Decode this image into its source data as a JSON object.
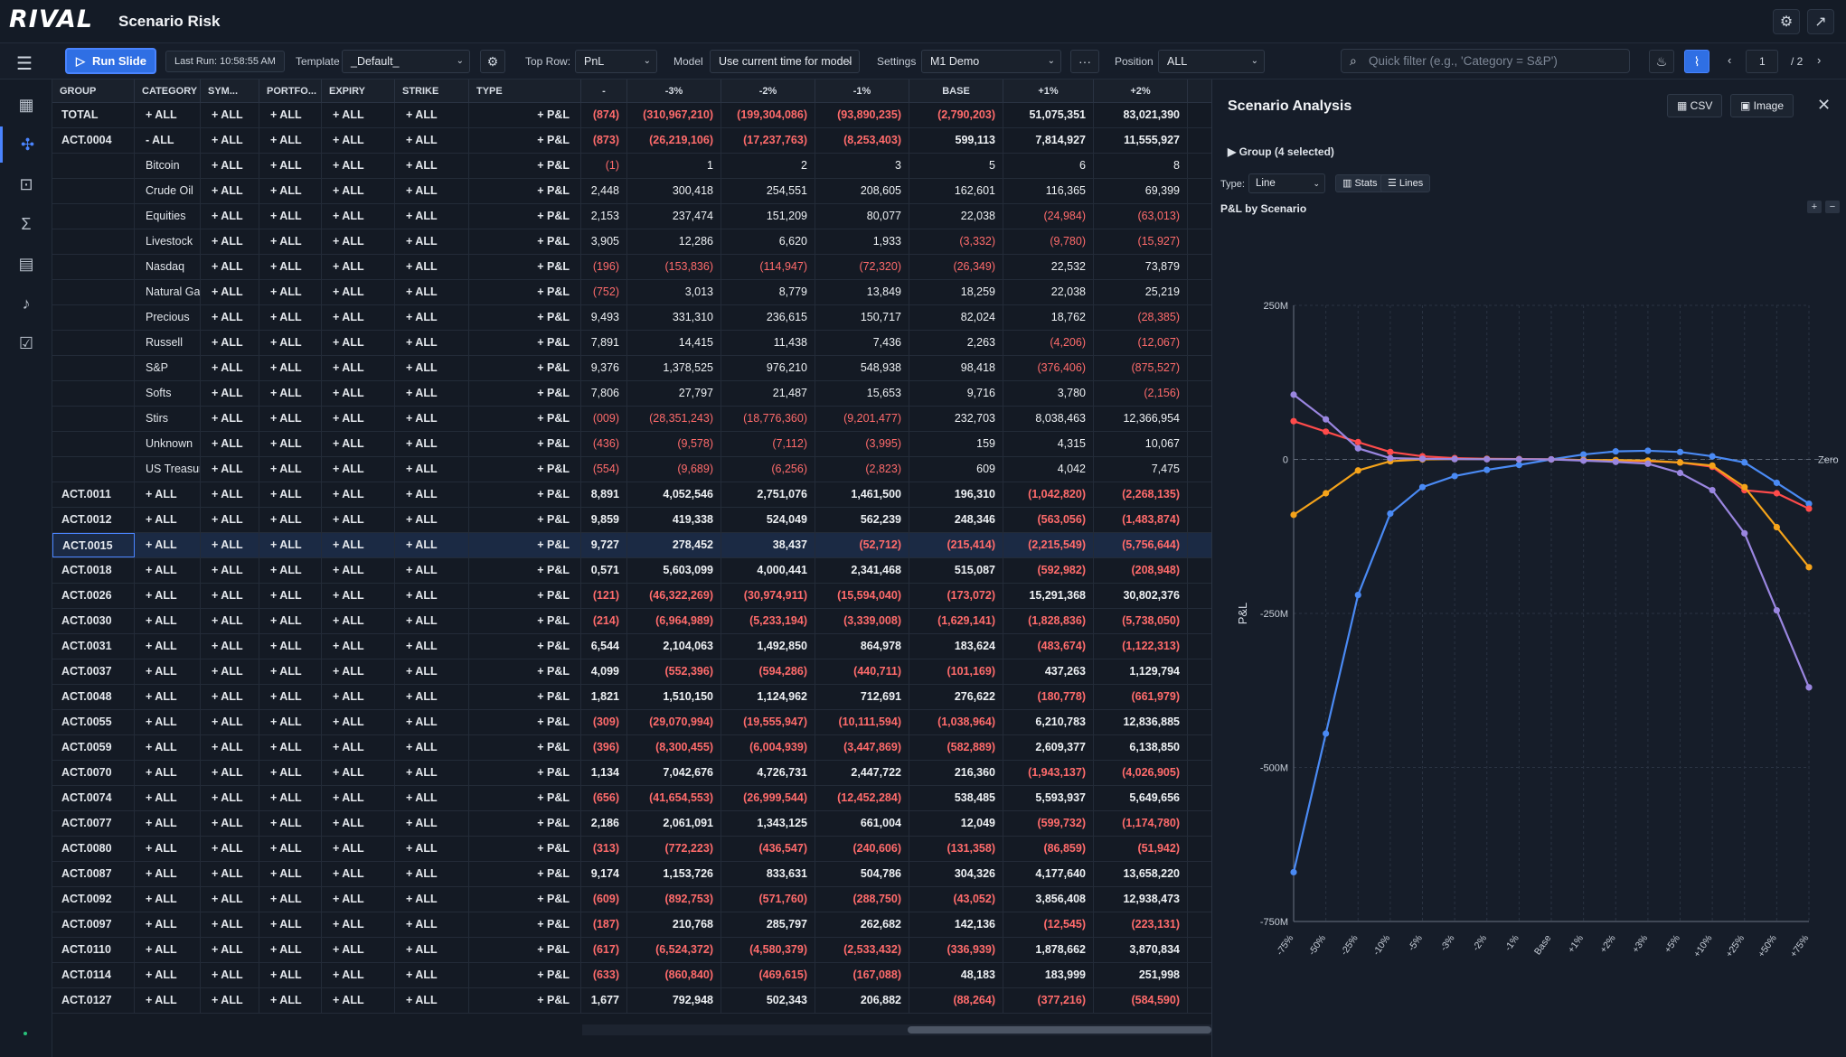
{
  "app": {
    "logo": "RIVAL",
    "title": "Scenario Risk"
  },
  "toolbar": {
    "run_label": "Run Slide",
    "last_run": "Last Run: 10:58:55 AM",
    "template_label": "Template",
    "template_value": "_Default_",
    "top_row_label": "Top Row:",
    "top_row_value": "PnL",
    "model_label": "Model",
    "model_value": "Use current time for model",
    "settings_label": "Settings",
    "settings_value": "M1 Demo",
    "more_label": "···",
    "position_label": "Position",
    "position_value": "ALL",
    "filter_placeholder": "Quick filter (e.g., 'Category = S&P')",
    "page_current": "1",
    "page_total": "/ 2"
  },
  "grid": {
    "headers": [
      "GROUP",
      "CATEGORY",
      "SYM...",
      "PORTFO...",
      "EXPIRY",
      "STRIKE",
      "TYPE",
      "-",
      "-3%",
      "-2%",
      "-1%",
      "BASE",
      "+1%",
      "+2%"
    ],
    "rows": [
      {
        "group": "TOTAL",
        "category": "+ ALL",
        "vals": [
          "(874)",
          "(310,967,210)",
          "(199,304,086)",
          "(93,890,235)",
          "(2,790,203)",
          "51,075,351",
          "83,021,390"
        ]
      },
      {
        "group": "ACT.0004",
        "category": "- ALL",
        "vals": [
          "(873)",
          "(26,219,106)",
          "(17,237,763)",
          "(8,253,403)",
          "599,113",
          "7,814,927",
          "11,555,927"
        ]
      },
      {
        "group": "",
        "category": "Bitcoin",
        "vals": [
          "(1)",
          "1",
          "2",
          "3",
          "5",
          "6",
          "8"
        ]
      },
      {
        "group": "",
        "category": "Crude Oil",
        "vals": [
          "2,448",
          "300,418",
          "254,551",
          "208,605",
          "162,601",
          "116,365",
          "69,399"
        ]
      },
      {
        "group": "",
        "category": "Equities",
        "vals": [
          "2,153",
          "237,474",
          "151,209",
          "80,077",
          "22,038",
          "(24,984)",
          "(63,013)"
        ]
      },
      {
        "group": "",
        "category": "Livestock",
        "vals": [
          "3,905",
          "12,286",
          "6,620",
          "1,933",
          "(3,332)",
          "(9,780)",
          "(15,927)"
        ]
      },
      {
        "group": "",
        "category": "Nasdaq",
        "vals": [
          "(196)",
          "(153,836)",
          "(114,947)",
          "(72,320)",
          "(26,349)",
          "22,532",
          "73,879"
        ]
      },
      {
        "group": "",
        "category": "Natural Gas",
        "vals": [
          "(752)",
          "3,013",
          "8,779",
          "13,849",
          "18,259",
          "22,038",
          "25,219"
        ]
      },
      {
        "group": "",
        "category": "Precious",
        "vals": [
          "9,493",
          "331,310",
          "236,615",
          "150,717",
          "82,024",
          "18,762",
          "(28,385)"
        ]
      },
      {
        "group": "",
        "category": "Russell",
        "vals": [
          "7,891",
          "14,415",
          "11,438",
          "7,436",
          "2,263",
          "(4,206)",
          "(12,067)"
        ]
      },
      {
        "group": "",
        "category": "S&P",
        "vals": [
          "9,376",
          "1,378,525",
          "976,210",
          "548,938",
          "98,418",
          "(376,406)",
          "(875,527)"
        ]
      },
      {
        "group": "",
        "category": "Softs",
        "vals": [
          "7,806",
          "27,797",
          "21,487",
          "15,653",
          "9,716",
          "3,780",
          "(2,156)"
        ]
      },
      {
        "group": "",
        "category": "Stirs",
        "vals": [
          "(009)",
          "(28,351,243)",
          "(18,776,360)",
          "(9,201,477)",
          "232,703",
          "8,038,463",
          "12,366,954"
        ]
      },
      {
        "group": "",
        "category": "Unknown",
        "vals": [
          "(436)",
          "(9,578)",
          "(7,112)",
          "(3,995)",
          "159",
          "4,315",
          "10,067"
        ]
      },
      {
        "group": "",
        "category": "US Treasury",
        "vals": [
          "(554)",
          "(9,689)",
          "(6,256)",
          "(2,823)",
          "609",
          "4,042",
          "7,475"
        ]
      },
      {
        "group": "ACT.0011",
        "category": "+ ALL",
        "vals": [
          "8,891",
          "4,052,546",
          "2,751,076",
          "1,461,500",
          "196,310",
          "(1,042,820)",
          "(2,268,135)"
        ]
      },
      {
        "group": "ACT.0012",
        "category": "+ ALL",
        "vals": [
          "9,859",
          "419,338",
          "524,049",
          "562,239",
          "248,346",
          "(563,056)",
          "(1,483,874)"
        ]
      },
      {
        "group": "ACT.0015",
        "category": "+ ALL",
        "vals": [
          "9,727",
          "278,452",
          "38,437",
          "(52,712)",
          "(215,414)",
          "(2,215,549)",
          "(5,756,644)"
        ]
      },
      {
        "group": "ACT.0018",
        "category": "+ ALL",
        "vals": [
          "0,571",
          "5,603,099",
          "4,000,441",
          "2,341,468",
          "515,087",
          "(592,982)",
          "(208,948)"
        ]
      },
      {
        "group": "ACT.0026",
        "category": "+ ALL",
        "vals": [
          "(121)",
          "(46,322,269)",
          "(30,974,911)",
          "(15,594,040)",
          "(173,072)",
          "15,291,368",
          "30,802,376"
        ]
      },
      {
        "group": "ACT.0030",
        "category": "+ ALL",
        "vals": [
          "(214)",
          "(6,964,989)",
          "(5,233,194)",
          "(3,339,008)",
          "(1,629,141)",
          "(1,828,836)",
          "(5,738,050)"
        ]
      },
      {
        "group": "ACT.0031",
        "category": "+ ALL",
        "vals": [
          "6,544",
          "2,104,063",
          "1,492,850",
          "864,978",
          "183,624",
          "(483,674)",
          "(1,122,313)"
        ]
      },
      {
        "group": "ACT.0037",
        "category": "+ ALL",
        "vals": [
          "4,099",
          "(552,396)",
          "(594,286)",
          "(440,711)",
          "(101,169)",
          "437,263",
          "1,129,794"
        ]
      },
      {
        "group": "ACT.0048",
        "category": "+ ALL",
        "vals": [
          "1,821",
          "1,510,150",
          "1,124,962",
          "712,691",
          "276,622",
          "(180,778)",
          "(661,979)"
        ]
      },
      {
        "group": "ACT.0055",
        "category": "+ ALL",
        "vals": [
          "(309)",
          "(29,070,994)",
          "(19,555,947)",
          "(10,111,594)",
          "(1,038,964)",
          "6,210,783",
          "12,836,885"
        ]
      },
      {
        "group": "ACT.0059",
        "category": "+ ALL",
        "vals": [
          "(396)",
          "(8,300,455)",
          "(6,004,939)",
          "(3,447,869)",
          "(582,889)",
          "2,609,377",
          "6,138,850"
        ]
      },
      {
        "group": "ACT.0070",
        "category": "+ ALL",
        "vals": [
          "1,134",
          "7,042,676",
          "4,726,731",
          "2,447,722",
          "216,360",
          "(1,943,137)",
          "(4,026,905)"
        ]
      },
      {
        "group": "ACT.0074",
        "category": "+ ALL",
        "vals": [
          "(656)",
          "(41,654,553)",
          "(26,999,544)",
          "(12,452,284)",
          "538,485",
          "5,593,937",
          "5,649,656"
        ]
      },
      {
        "group": "ACT.0077",
        "category": "+ ALL",
        "vals": [
          "2,186",
          "2,061,091",
          "1,343,125",
          "661,004",
          "12,049",
          "(599,732)",
          "(1,174,780)"
        ]
      },
      {
        "group": "ACT.0080",
        "category": "+ ALL",
        "vals": [
          "(313)",
          "(772,223)",
          "(436,547)",
          "(240,606)",
          "(131,358)",
          "(86,859)",
          "(51,942)"
        ]
      },
      {
        "group": "ACT.0087",
        "category": "+ ALL",
        "vals": [
          "9,174",
          "1,153,726",
          "833,631",
          "504,786",
          "304,326",
          "4,177,640",
          "13,658,220"
        ]
      },
      {
        "group": "ACT.0092",
        "category": "+ ALL",
        "vals": [
          "(609)",
          "(892,753)",
          "(571,760)",
          "(288,750)",
          "(43,052)",
          "3,856,408",
          "12,938,473"
        ]
      },
      {
        "group": "ACT.0097",
        "category": "+ ALL",
        "vals": [
          "(187)",
          "210,768",
          "285,797",
          "262,682",
          "142,136",
          "(12,545)",
          "(223,131)"
        ]
      },
      {
        "group": "ACT.0110",
        "category": "+ ALL",
        "vals": [
          "(617)",
          "(6,524,372)",
          "(4,580,379)",
          "(2,533,432)",
          "(336,939)",
          "1,878,662",
          "3,870,834"
        ]
      },
      {
        "group": "ACT.0114",
        "category": "+ ALL",
        "vals": [
          "(633)",
          "(860,840)",
          "(469,615)",
          "(167,088)",
          "48,183",
          "183,999",
          "251,998"
        ]
      },
      {
        "group": "ACT.0127",
        "category": "+ ALL",
        "vals": [
          "1,677",
          "792,948",
          "502,343",
          "206,882",
          "(88,264)",
          "(377,216)",
          "(584,590)"
        ]
      }
    ],
    "all_label": "+ ALL",
    "type_label": "+ P&L"
  },
  "panel": {
    "title": "Scenario Analysis",
    "csv_label": "CSV",
    "image_label": "Image",
    "group_label": "Group (4 selected)",
    "type_label": "Type:",
    "type_value": "Line",
    "stats_label": "Stats",
    "lines_label": "Lines",
    "chart_title": "P&L by Scenario"
  },
  "chart_data": {
    "type": "line",
    "title": "P&L by Scenario",
    "ylabel": "P&L",
    "xlabel": "",
    "categories": [
      "-75%",
      "-50%",
      "-25%",
      "-10%",
      "-5%",
      "-3%",
      "-2%",
      "-1%",
      "Base",
      "+1%",
      "+2%",
      "+3%",
      "+5%",
      "+10%",
      "+25%",
      "+50%",
      "+75%"
    ],
    "ylim": [
      -750,
      250
    ],
    "yticks": [
      250,
      0,
      -250,
      -500,
      -750
    ],
    "ytick_labels": [
      "250M",
      "0",
      "-250M",
      "-500M",
      "-750M"
    ],
    "zero_label": "Zero",
    "grid": true,
    "series": [
      {
        "color": "#4a8af4",
        "values": [
          -670,
          -445,
          -220,
          -88,
          -45,
          -27,
          -17,
          -9,
          0,
          8,
          13,
          14,
          12,
          5,
          -5,
          -38,
          -72
        ]
      },
      {
        "color": "#ff4b4b",
        "values": [
          62,
          45,
          28,
          12,
          5,
          2,
          1,
          0.5,
          0,
          -1,
          -2,
          -3,
          -5,
          -12,
          -50,
          -55,
          -80
        ]
      },
      {
        "color": "#f5a31a",
        "values": [
          -90,
          -55,
          -18,
          -3,
          0,
          0.5,
          0.5,
          0.3,
          0,
          -1,
          -1,
          -2,
          -5,
          -10,
          -45,
          -110,
          -175
        ]
      },
      {
        "color": "#9a86e0",
        "values": [
          105,
          65,
          18,
          2,
          1,
          0.5,
          0.3,
          0.2,
          0,
          -2,
          -4,
          -7,
          -22,
          -50,
          -120,
          -245,
          -370
        ]
      }
    ]
  }
}
